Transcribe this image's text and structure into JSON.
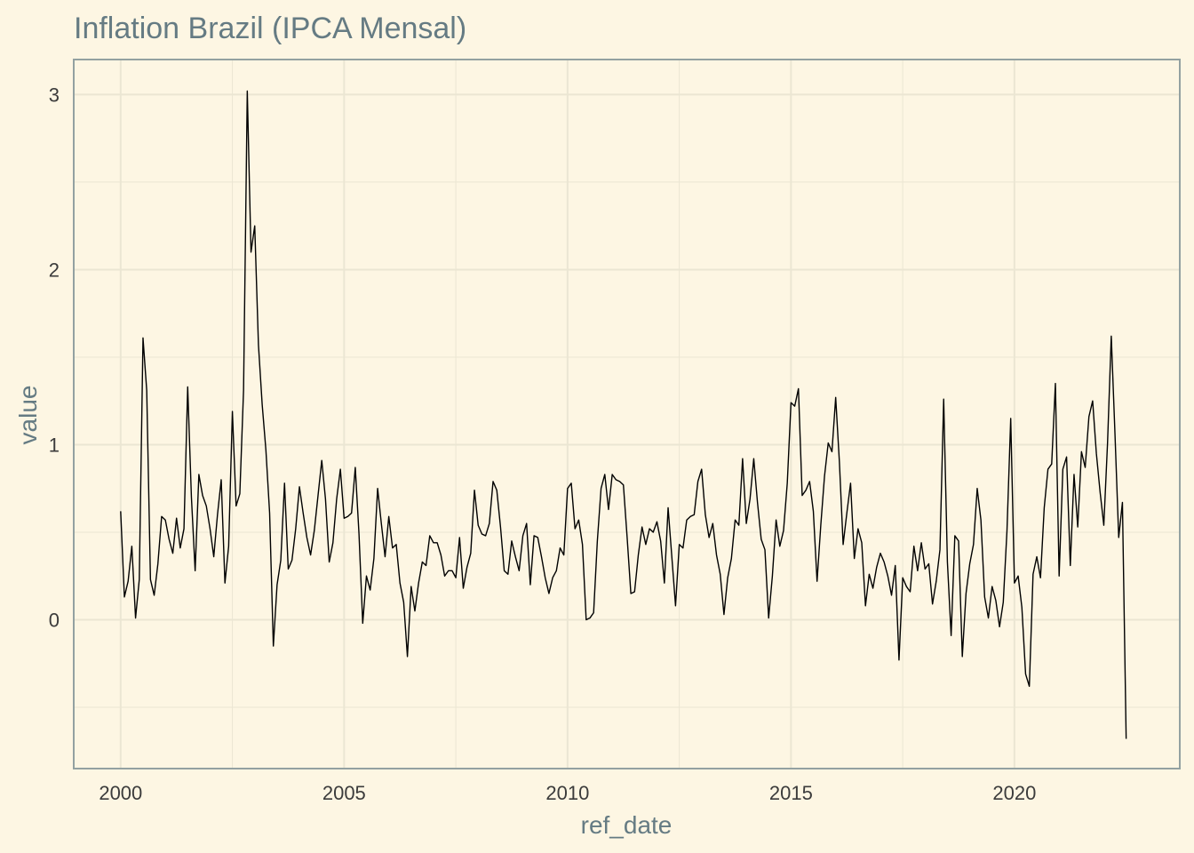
{
  "chart_data": {
    "type": "line",
    "title": "Inflation Brazil (IPCA Mensal)",
    "xlabel": "ref_date",
    "ylabel": "value",
    "x_ticks": [
      "2000",
      "2005",
      "2010",
      "2015",
      "2020"
    ],
    "y_ticks": [
      "0",
      "1",
      "2",
      "3"
    ],
    "xlim": [
      1998.95,
      2023.7
    ],
    "ylim": [
      -0.85,
      3.2
    ],
    "grid": true,
    "legend": "none",
    "colors": {
      "background": "#fdf6e3",
      "grid": "#ebe6d3",
      "panel_border": "#93a1a1",
      "title_text": "#657b83",
      "tick_text": "#3b3b3b",
      "line": "#000000"
    },
    "series": [
      {
        "start": "2000-01",
        "frequency": "monthly",
        "values": [
          0.62,
          0.13,
          0.22,
          0.42,
          0.01,
          0.23,
          1.61,
          1.31,
          0.23,
          0.14,
          0.32,
          0.59,
          0.57,
          0.46,
          0.38,
          0.58,
          0.41,
          0.52,
          1.33,
          0.7,
          0.28,
          0.83,
          0.71,
          0.65,
          0.52,
          0.36,
          0.6,
          0.8,
          0.21,
          0.42,
          1.19,
          0.65,
          0.72,
          1.31,
          3.02,
          2.1,
          2.25,
          1.57,
          1.23,
          0.97,
          0.61,
          -0.15,
          0.2,
          0.34,
          0.78,
          0.29,
          0.34,
          0.52,
          0.76,
          0.61,
          0.47,
          0.37,
          0.51,
          0.71,
          0.91,
          0.69,
          0.33,
          0.44,
          0.69,
          0.86,
          0.58,
          0.59,
          0.61,
          0.87,
          0.49,
          -0.02,
          0.25,
          0.17,
          0.35,
          0.75,
          0.55,
          0.36,
          0.59,
          0.41,
          0.43,
          0.21,
          0.1,
          -0.21,
          0.19,
          0.05,
          0.21,
          0.33,
          0.31,
          0.48,
          0.44,
          0.44,
          0.37,
          0.25,
          0.28,
          0.28,
          0.24,
          0.47,
          0.18,
          0.3,
          0.38,
          0.74,
          0.54,
          0.49,
          0.48,
          0.55,
          0.79,
          0.74,
          0.53,
          0.28,
          0.26,
          0.45,
          0.36,
          0.28,
          0.48,
          0.55,
          0.2,
          0.48,
          0.47,
          0.36,
          0.24,
          0.15,
          0.24,
          0.28,
          0.41,
          0.37,
          0.75,
          0.78,
          0.52,
          0.57,
          0.43,
          0.0,
          0.01,
          0.04,
          0.45,
          0.75,
          0.83,
          0.63,
          0.83,
          0.8,
          0.79,
          0.77,
          0.47,
          0.15,
          0.16,
          0.37,
          0.53,
          0.43,
          0.52,
          0.5,
          0.56,
          0.45,
          0.21,
          0.64,
          0.36,
          0.08,
          0.43,
          0.41,
          0.57,
          0.59,
          0.6,
          0.79,
          0.86,
          0.6,
          0.47,
          0.55,
          0.37,
          0.26,
          0.03,
          0.24,
          0.35,
          0.57,
          0.54,
          0.92,
          0.55,
          0.69,
          0.92,
          0.67,
          0.46,
          0.4,
          0.01,
          0.25,
          0.57,
          0.42,
          0.51,
          0.78,
          1.24,
          1.22,
          1.32,
          0.71,
          0.74,
          0.79,
          0.62,
          0.22,
          0.54,
          0.82,
          1.01,
          0.96,
          1.27,
          0.9,
          0.43,
          0.61,
          0.78,
          0.35,
          0.52,
          0.44,
          0.08,
          0.26,
          0.18,
          0.3,
          0.38,
          0.33,
          0.25,
          0.14,
          0.31,
          -0.23,
          0.24,
          0.19,
          0.16,
          0.42,
          0.28,
          0.44,
          0.29,
          0.32,
          0.09,
          0.22,
          0.4,
          1.26,
          0.33,
          -0.09,
          0.48,
          0.45,
          -0.21,
          0.15,
          0.32,
          0.43,
          0.75,
          0.57,
          0.13,
          0.01,
          0.19,
          0.11,
          -0.04,
          0.1,
          0.51,
          1.15,
          0.21,
          0.25,
          0.07,
          -0.31,
          -0.38,
          0.26,
          0.36,
          0.24,
          0.64,
          0.86,
          0.89,
          1.35,
          0.25,
          0.86,
          0.93,
          0.31,
          0.83,
          0.53,
          0.96,
          0.87,
          1.16,
          1.25,
          0.95,
          0.73,
          0.54,
          1.01,
          1.62,
          1.06,
          0.47,
          0.67,
          -0.68
        ]
      }
    ]
  }
}
